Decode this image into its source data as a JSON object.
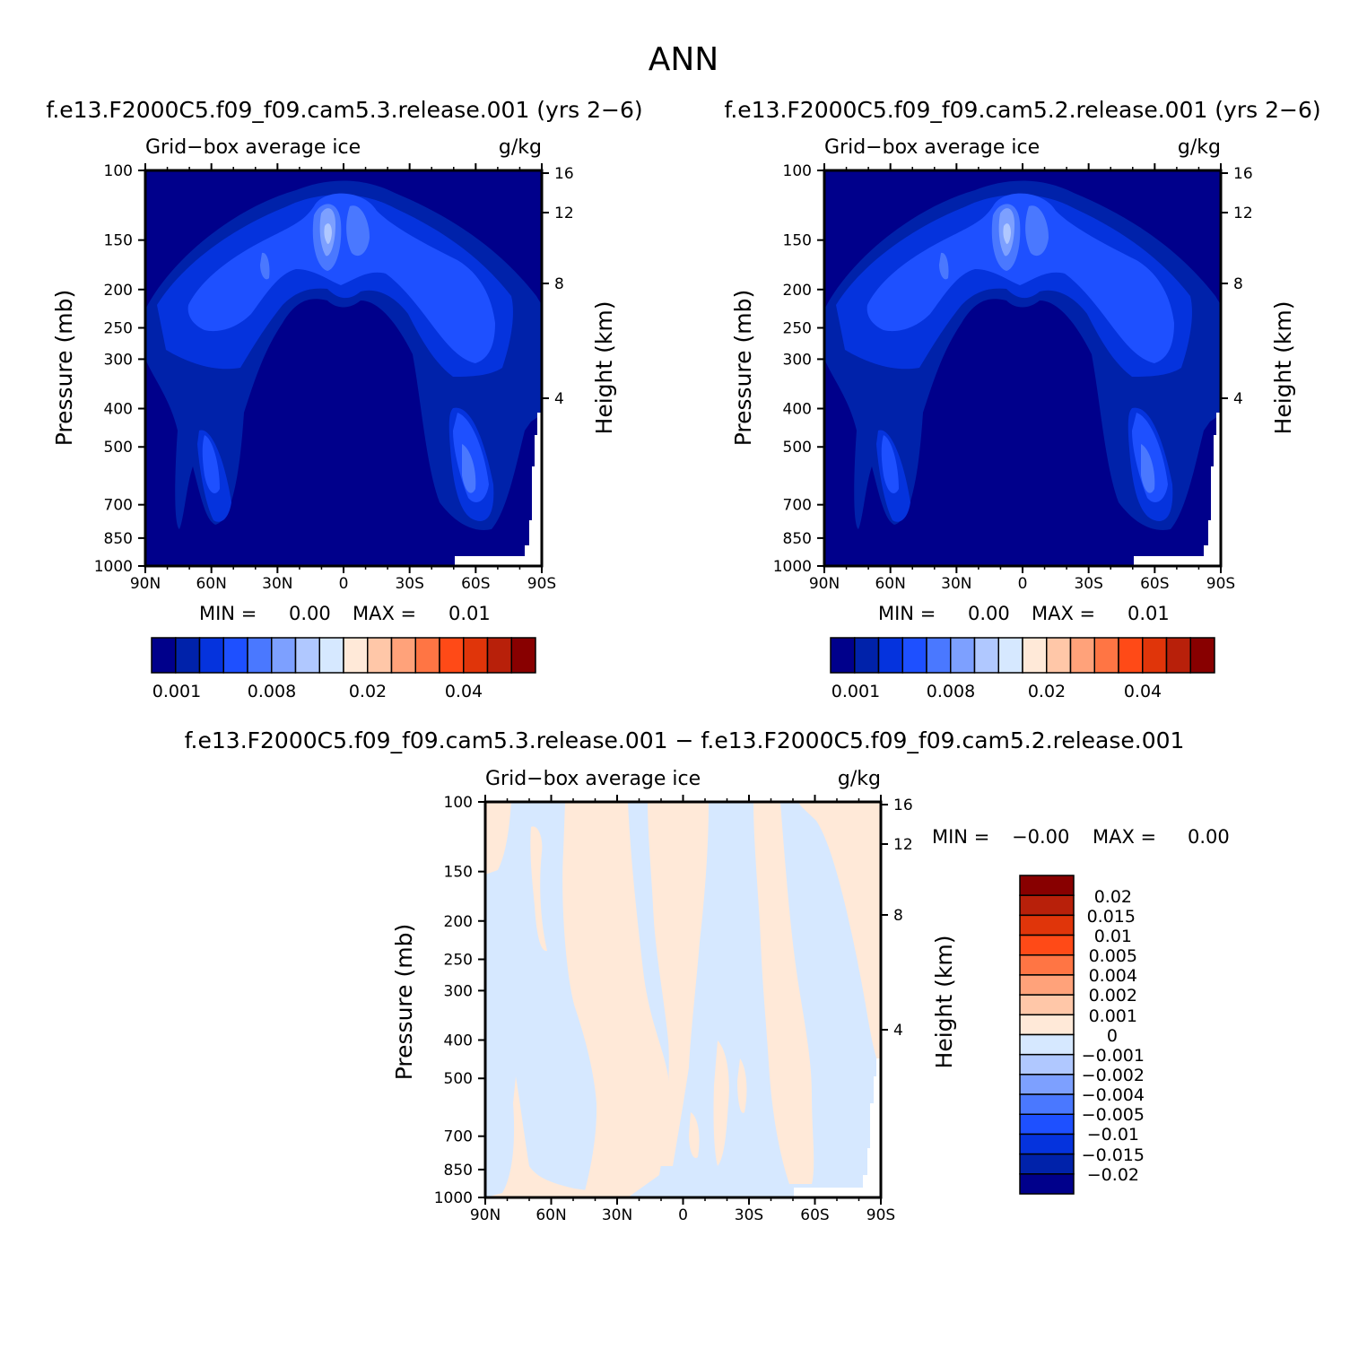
{
  "page_title": "ANN",
  "colors": {
    "abs_palette": [
      "#00008b",
      "#0022aa",
      "#0533dd",
      "#1e50ff",
      "#4a78ff",
      "#7da0ff",
      "#b0c8ff",
      "#d6e8ff",
      "#ffe9d8",
      "#ffc7a8",
      "#ffa27a",
      "#ff7544",
      "#ff4a17",
      "#e0350a",
      "#b8200a",
      "#880000"
    ],
    "diff_palette": [
      "#00008b",
      "#0022aa",
      "#0533dd",
      "#1e50ff",
      "#4a78ff",
      "#7da0ff",
      "#b0c8ff",
      "#d6e8ff",
      "#ffe9d8",
      "#ffc7a8",
      "#ffa27a",
      "#ff7544",
      "#ff4a17",
      "#e0350a",
      "#b8200a",
      "#880000"
    ]
  },
  "panels": [
    {
      "case_title": "f.e13.F2000C5.f09_f09.cam5.3.release.001 (yrs 2−6)",
      "variable_label": "Grid−box average ice",
      "units_label": "g/kg",
      "ylabel": "Pressure (mb)",
      "y2label": "Height (km)",
      "min_label": "MIN =",
      "min_value": "0.00",
      "max_label": "MAX =",
      "max_value": "0.01",
      "colorbar_labels": [
        "0.001",
        "0.008",
        "0.02",
        "0.04"
      ]
    },
    {
      "case_title": "f.e13.F2000C5.f09_f09.cam5.2.release.001 (yrs 2−6)",
      "variable_label": "Grid−box average ice",
      "units_label": "g/kg",
      "ylabel": "Pressure (mb)",
      "y2label": "Height (km)",
      "min_label": "MIN =",
      "min_value": "0.00",
      "max_label": "MAX =",
      "max_value": "0.01",
      "colorbar_labels": [
        "0.001",
        "0.008",
        "0.02",
        "0.04"
      ]
    },
    {
      "case_title": "f.e13.F2000C5.f09_f09.cam5.3.release.001 − f.e13.F2000C5.f09_f09.cam5.2.release.001",
      "variable_label": "Grid−box average ice",
      "units_label": "g/kg",
      "ylabel": "Pressure (mb)",
      "y2label": "Height (km)",
      "min_label": "MIN =",
      "min_value": "−0.00",
      "max_label": "MAX =",
      "max_value": "0.00",
      "colorbar_labels": [
        "0.02",
        "0.015",
        "0.01",
        "0.005",
        "0.004",
        "0.002",
        "0.001",
        "0",
        "−0.001",
        "−0.002",
        "−0.004",
        "−0.005",
        "−0.01",
        "−0.015",
        "−0.02"
      ]
    }
  ],
  "chart_data": [
    {
      "type": "heatmap",
      "title": "f.e13.F2000C5.f09_f09.cam5.3.release.001 (yrs 2−6)",
      "xlabel": "",
      "ylabel": "Pressure (mb)",
      "y2label": "Height (km)",
      "x_ticks": [
        "90N",
        "60N",
        "30N",
        "0",
        "30S",
        "60S",
        "90S"
      ],
      "x_values": [
        90,
        60,
        30,
        0,
        -30,
        -60,
        -90
      ],
      "y_ticks": [
        "100",
        "150",
        "200",
        "250",
        "300",
        "400",
        "500",
        "700",
        "850",
        "1000"
      ],
      "y_values": [
        100,
        150,
        200,
        250,
        300,
        400,
        500,
        700,
        850,
        1000
      ],
      "y2_ticks": [
        "16",
        "12",
        "8",
        "4"
      ],
      "y_scale": "log",
      "ylim": [
        1000,
        100
      ],
      "xlim": [
        90,
        -90
      ],
      "levels": [
        0.001,
        0.002,
        0.004,
        0.006,
        0.008,
        0.01,
        0.015,
        0.02,
        0.025,
        0.03,
        0.035,
        0.04,
        0.045,
        0.05,
        0.06
      ],
      "min": 0.0,
      "max": 0.01
    },
    {
      "type": "heatmap",
      "title": "f.e13.F2000C5.f09_f09.cam5.2.release.001 (yrs 2−6)",
      "xlabel": "",
      "ylabel": "Pressure (mb)",
      "y2label": "Height (km)",
      "x_ticks": [
        "90N",
        "60N",
        "30N",
        "0",
        "30S",
        "60S",
        "90S"
      ],
      "x_values": [
        90,
        60,
        30,
        0,
        -30,
        -60,
        -90
      ],
      "y_ticks": [
        "100",
        "150",
        "200",
        "250",
        "300",
        "400",
        "500",
        "700",
        "850",
        "1000"
      ],
      "y_values": [
        100,
        150,
        200,
        250,
        300,
        400,
        500,
        700,
        850,
        1000
      ],
      "y2_ticks": [
        "16",
        "12",
        "8",
        "4"
      ],
      "y_scale": "log",
      "ylim": [
        1000,
        100
      ],
      "xlim": [
        90,
        -90
      ],
      "levels": [
        0.001,
        0.002,
        0.004,
        0.006,
        0.008,
        0.01,
        0.015,
        0.02,
        0.025,
        0.03,
        0.035,
        0.04,
        0.045,
        0.05,
        0.06
      ],
      "min": 0.0,
      "max": 0.01
    },
    {
      "type": "heatmap",
      "title": "f.e13.F2000C5.f09_f09.cam5.3.release.001 − f.e13.F2000C5.f09_f09.cam5.2.release.001",
      "xlabel": "",
      "ylabel": "Pressure (mb)",
      "y2label": "Height (km)",
      "x_ticks": [
        "90N",
        "60N",
        "30N",
        "0",
        "30S",
        "60S",
        "90S"
      ],
      "x_values": [
        90,
        60,
        30,
        0,
        -30,
        -60,
        -90
      ],
      "y_ticks": [
        "100",
        "150",
        "200",
        "250",
        "300",
        "400",
        "500",
        "700",
        "850",
        "1000"
      ],
      "y_values": [
        100,
        150,
        200,
        250,
        300,
        400,
        500,
        700,
        850,
        1000
      ],
      "y2_ticks": [
        "16",
        "12",
        "8",
        "4"
      ],
      "y_scale": "log",
      "ylim": [
        1000,
        100
      ],
      "xlim": [
        90,
        -90
      ],
      "levels": [
        -0.02,
        -0.015,
        -0.01,
        -0.005,
        -0.004,
        -0.002,
        -0.001,
        0,
        0.001,
        0.002,
        0.004,
        0.005,
        0.01,
        0.015,
        0.02
      ],
      "min": -0.0,
      "max": 0.0
    }
  ]
}
